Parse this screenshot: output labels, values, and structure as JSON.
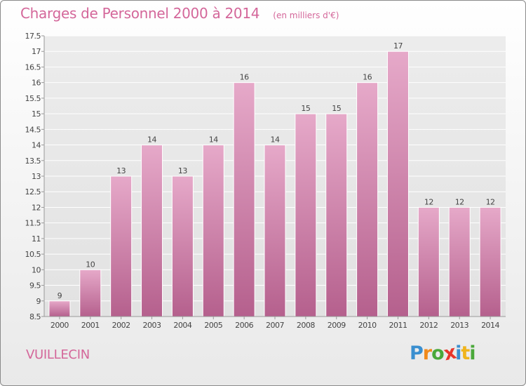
{
  "chart_data": {
    "type": "bar",
    "title": "Charges de Personnel 2000 à 2014",
    "unit_note": "(en milliers d'€)",
    "categories": [
      "2000",
      "2001",
      "2002",
      "2003",
      "2004",
      "2005",
      "2006",
      "2007",
      "2008",
      "2009",
      "2010",
      "2011",
      "2012",
      "2013",
      "2014"
    ],
    "values": [
      9,
      10,
      13,
      14,
      13,
      14,
      16,
      14,
      15,
      15,
      16,
      17,
      12,
      12,
      12
    ],
    "value_labels": [
      "9",
      "10",
      "13",
      "14",
      "13",
      "14",
      "16",
      "14",
      "15",
      "15",
      "16",
      "17",
      "12",
      "12",
      "12"
    ],
    "yticks": [
      "8.5",
      "9",
      "9.5",
      "10",
      "10.5",
      "11",
      "11.5",
      "12",
      "12.5",
      "13",
      "13.5",
      "14",
      "14.5",
      "15",
      "15.5",
      "16",
      "16.5",
      "17",
      "17.5"
    ],
    "ylim": [
      8.5,
      17.5
    ],
    "grid": true,
    "bar_color": "#d87fae"
  },
  "footer": {
    "commune": "VUILLECIN",
    "logo_letters": [
      "P",
      "r",
      "o",
      "x",
      "i",
      "t",
      "i"
    ],
    "logo_colors": [
      "#3a8fd0",
      "#f08a1c",
      "#4aa83a",
      "#e8352a",
      "#3a8fd0",
      "#f0b41c",
      "#4aa83a"
    ]
  }
}
